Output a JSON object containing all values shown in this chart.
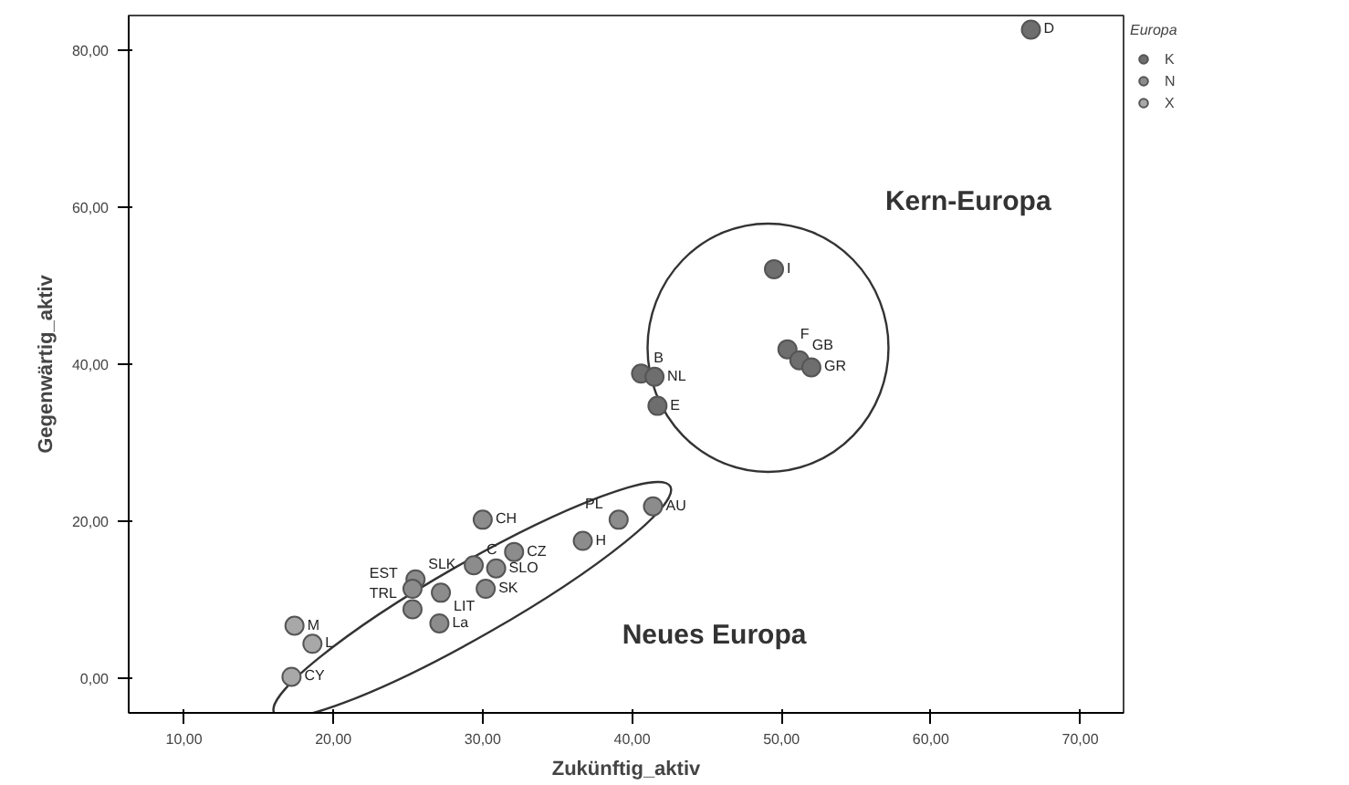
{
  "chart_data": {
    "type": "scatter",
    "xlabel": "Zukünftig_aktiv",
    "ylabel": "Gegenwärtig_aktiv",
    "legend_title": "Europa",
    "xlim": [
      6.3,
      72.9
    ],
    "ylim": [
      -4.4,
      84.4
    ],
    "xticks": [
      {
        "value": 10,
        "label": "10,00"
      },
      {
        "value": 20,
        "label": "20,00"
      },
      {
        "value": 30,
        "label": "30,00"
      },
      {
        "value": 40,
        "label": "40,00"
      },
      {
        "value": 50,
        "label": "50,00"
      },
      {
        "value": 60,
        "label": "60,00"
      },
      {
        "value": 70,
        "label": "70,00"
      }
    ],
    "yticks": [
      {
        "value": 0,
        "label": "0,00"
      },
      {
        "value": 20,
        "label": "20,00"
      },
      {
        "value": 40,
        "label": "40,00"
      },
      {
        "value": 60,
        "label": "60,00"
      },
      {
        "value": 80,
        "label": "80,00"
      }
    ],
    "grid": false,
    "legend": "top right",
    "marker": "circle",
    "series": [
      {
        "name": "K",
        "color": "#6e6e6e",
        "x": [
          66.7,
          49.5,
          50.4,
          51.2,
          52.0,
          40.6,
          41.5,
          41.7
        ],
        "values": [
          82.6,
          52.1,
          41.9,
          40.5,
          39.6,
          38.8,
          38.4,
          34.7
        ]
      },
      {
        "name": "N",
        "color": "#8c8c8c",
        "x": [
          41.4,
          39.1,
          36.7,
          32.1,
          30.0,
          29.4,
          30.9,
          30.2,
          25.5,
          25.3,
          27.2,
          25.3,
          27.1
        ],
        "values": [
          21.9,
          20.2,
          17.5,
          16.1,
          20.2,
          14.4,
          14.0,
          11.4,
          12.6,
          11.4,
          10.9,
          8.8,
          7.0
        ]
      },
      {
        "name": "X",
        "color": "#a8a8a8",
        "x": [
          17.4,
          18.6,
          17.2
        ],
        "values": [
          6.7,
          4.4,
          0.2
        ]
      }
    ],
    "annotations": [
      {
        "text": "D",
        "x": 66.7,
        "y": 82.6
      },
      {
        "text": "I",
        "x": 49.5,
        "y": 52.1
      },
      {
        "text": "F",
        "x": 50.4,
        "y": 41.9
      },
      {
        "text": "GB",
        "x": 51.2,
        "y": 40.5
      },
      {
        "text": "GR",
        "x": 52.0,
        "y": 39.6
      },
      {
        "text": "B",
        "x": 40.6,
        "y": 38.8
      },
      {
        "text": "NL",
        "x": 41.5,
        "y": 38.4
      },
      {
        "text": "E",
        "x": 41.7,
        "y": 34.7
      },
      {
        "text": "AU",
        "x": 41.4,
        "y": 21.9
      },
      {
        "text": "PL",
        "x": 39.1,
        "y": 20.2
      },
      {
        "text": "H",
        "x": 36.7,
        "y": 17.5
      },
      {
        "text": "CZ",
        "x": 32.1,
        "y": 16.1
      },
      {
        "text": "CH",
        "x": 30.0,
        "y": 20.2
      },
      {
        "text": "C",
        "x": 29.4,
        "y": 14.4
      },
      {
        "text": "SLO",
        "x": 30.9,
        "y": 14.0
      },
      {
        "text": "SK",
        "x": 30.2,
        "y": 11.4
      },
      {
        "text": "SLK",
        "x": 25.5,
        "y": 12.6
      },
      {
        "text": "EST",
        "x": 25.3,
        "y": 11.4
      },
      {
        "text": "LIT",
        "x": 27.2,
        "y": 10.9
      },
      {
        "text": "TRL",
        "x": 25.3,
        "y": 8.8
      },
      {
        "text": "La",
        "x": 27.1,
        "y": 7.0
      },
      {
        "text": "M",
        "x": 17.4,
        "y": 6.7
      },
      {
        "text": "L",
        "x": 18.6,
        "y": 4.4
      },
      {
        "text": "CY",
        "x": 17.2,
        "y": 0.2
      },
      "Kern-Europa",
      "Neues Europa"
    ]
  }
}
